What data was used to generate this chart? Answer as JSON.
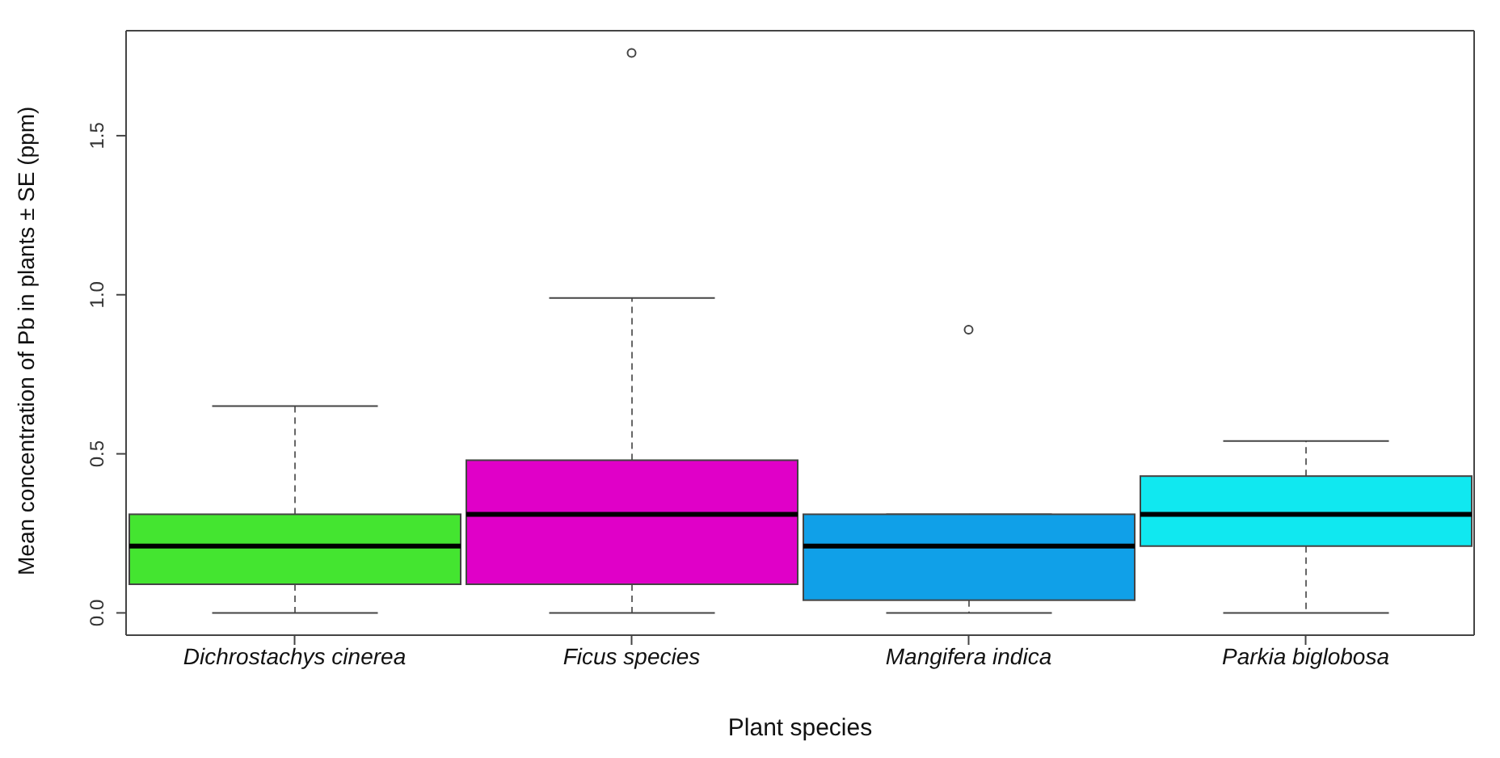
{
  "chart_data": {
    "type": "box",
    "xlabel": "Plant species",
    "ylabel": "Mean concentration of Pb in plants ± SE (ppm)",
    "categories": [
      "Dichrostachys cinerea",
      "Ficus species",
      "Mangifera indica",
      "Parkia biglobosa"
    ],
    "colors": [
      "#44e530",
      "#e000c8",
      "#10a0e8",
      "#10e8f0"
    ],
    "boxes": [
      {
        "low": 0,
        "q1": 0.09,
        "median": 0.21,
        "q3": 0.31,
        "high": 0.65
      },
      {
        "low": 0,
        "q1": 0.09,
        "median": 0.31,
        "q3": 0.48,
        "high": 0.99,
        "outliers": [
          1.76
        ]
      },
      {
        "low": 0,
        "q1": 0.04,
        "median": 0.21,
        "q3": 0.31,
        "high": 0.31,
        "outliers": [
          0.89
        ]
      },
      {
        "low": 0,
        "q1": 0.21,
        "median": 0.31,
        "q3": 0.43,
        "high": 0.54
      }
    ],
    "ylim": [
      -0.07,
      1.83
    ],
    "yticks": [
      {
        "value": 0,
        "label": "0.0"
      },
      {
        "value": 0.5,
        "label": "0.5"
      },
      {
        "value": 1,
        "label": "1.0"
      },
      {
        "value": 1.5,
        "label": "1.5"
      }
    ],
    "grid": false,
    "legend": false
  }
}
